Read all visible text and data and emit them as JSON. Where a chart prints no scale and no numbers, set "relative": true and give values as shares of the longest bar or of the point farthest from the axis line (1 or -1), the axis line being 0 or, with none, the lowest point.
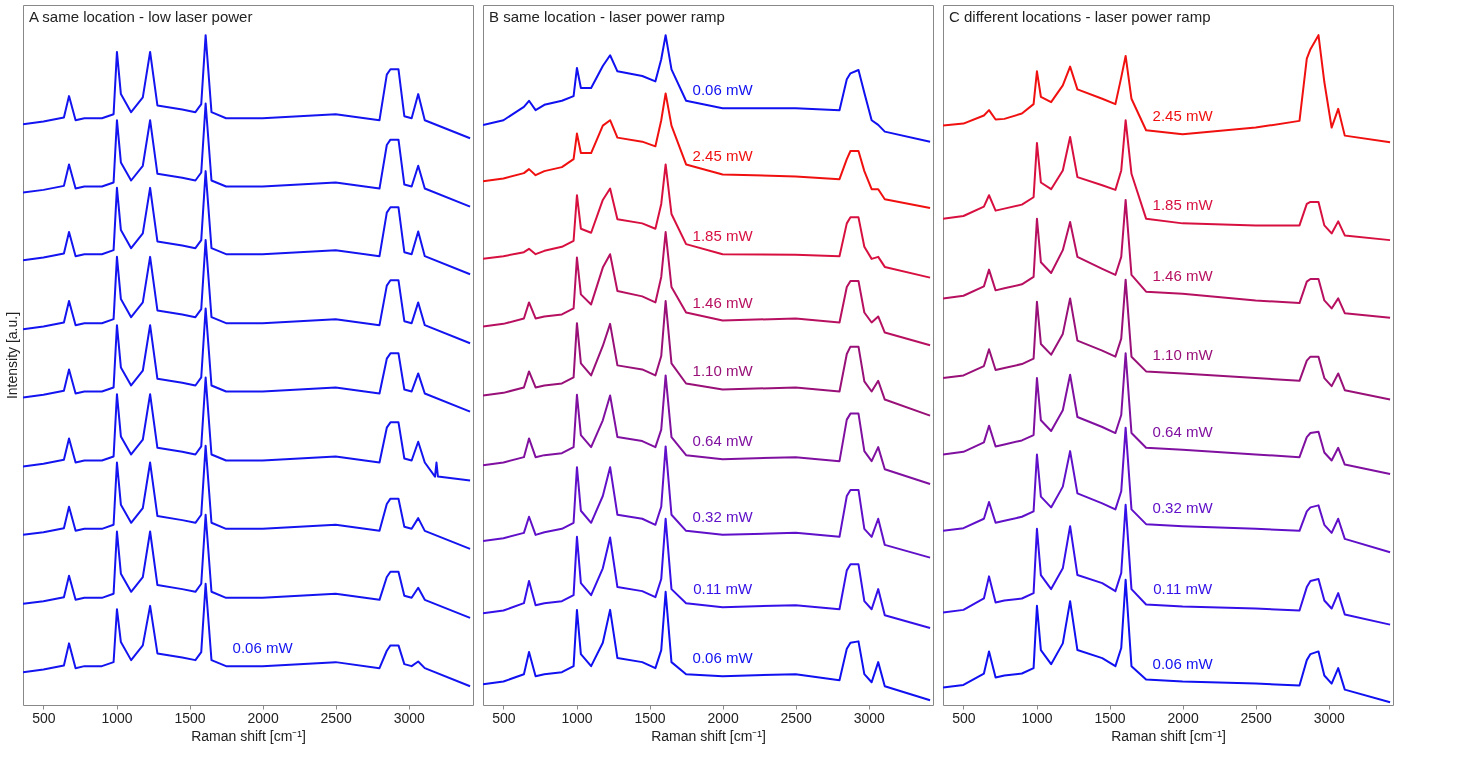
{
  "chart_data": [
    {
      "type": "line",
      "title": "A same location - low laser power",
      "xlabel": "Raman shift [cm⁻¹]",
      "ylabel": "Intensity [a.u.]",
      "relative": true,
      "tick_labels": "x",
      "xlim": [
        360,
        3440
      ],
      "xticks": [
        500,
        1000,
        1500,
        2000,
        2500,
        3000
      ],
      "x": [
        360,
        500,
        640,
        675,
        720,
        780,
        900,
        980,
        1003,
        1030,
        1100,
        1180,
        1230,
        1280,
        1450,
        1540,
        1580,
        1610,
        1650,
        1750,
        2000,
        2500,
        2800,
        2850,
        2875,
        2930,
        2970,
        3020,
        3065,
        3110,
        3420
      ],
      "series": [
        {
          "color": "#1414f0",
          "values": [
            0.867,
            0.871,
            0.877,
            0.909,
            0.873,
            0.876,
            0.876,
            0.882,
            0.975,
            0.912,
            0.885,
            0.907,
            0.975,
            0.895,
            0.889,
            0.885,
            0.897,
            1.0,
            0.885,
            0.876,
            0.876,
            0.882,
            0.873,
            0.941,
            0.949,
            0.949,
            0.879,
            0.876,
            0.912,
            0.873,
            0.846
          ]
        },
        {
          "color": "#1414f0",
          "values": [
            0.765,
            0.769,
            0.775,
            0.807,
            0.771,
            0.774,
            0.774,
            0.78,
            0.873,
            0.81,
            0.783,
            0.805,
            0.873,
            0.793,
            0.787,
            0.783,
            0.795,
            0.898,
            0.783,
            0.774,
            0.774,
            0.78,
            0.771,
            0.836,
            0.844,
            0.844,
            0.777,
            0.774,
            0.805,
            0.771,
            0.744
          ]
        },
        {
          "color": "#1414f0",
          "values": [
            0.664,
            0.668,
            0.674,
            0.706,
            0.67,
            0.673,
            0.673,
            0.679,
            0.772,
            0.709,
            0.682,
            0.704,
            0.772,
            0.692,
            0.686,
            0.682,
            0.694,
            0.797,
            0.682,
            0.673,
            0.673,
            0.679,
            0.67,
            0.735,
            0.743,
            0.743,
            0.676,
            0.673,
            0.707,
            0.67,
            0.643
          ]
        },
        {
          "color": "#1414f0",
          "values": [
            0.561,
            0.565,
            0.571,
            0.603,
            0.567,
            0.57,
            0.57,
            0.576,
            0.669,
            0.606,
            0.579,
            0.601,
            0.669,
            0.589,
            0.583,
            0.579,
            0.591,
            0.694,
            0.579,
            0.57,
            0.57,
            0.576,
            0.567,
            0.626,
            0.634,
            0.634,
            0.573,
            0.57,
            0.601,
            0.567,
            0.54
          ]
        },
        {
          "color": "#1414f0",
          "values": [
            0.459,
            0.463,
            0.469,
            0.501,
            0.465,
            0.468,
            0.468,
            0.474,
            0.567,
            0.504,
            0.477,
            0.499,
            0.567,
            0.487,
            0.481,
            0.477,
            0.489,
            0.592,
            0.477,
            0.468,
            0.468,
            0.474,
            0.465,
            0.517,
            0.525,
            0.525,
            0.471,
            0.468,
            0.495,
            0.465,
            0.438
          ]
        },
        {
          "color": "#1414f0",
          "x": [
            360,
            500,
            640,
            675,
            720,
            780,
            900,
            980,
            1003,
            1030,
            1100,
            1180,
            1230,
            1280,
            1450,
            1540,
            1580,
            1610,
            1650,
            1750,
            2000,
            2500,
            2800,
            2850,
            2875,
            2930,
            2970,
            3020,
            3065,
            3110,
            3180,
            3190,
            3200,
            3420
          ],
          "values": [
            0.356,
            0.36,
            0.366,
            0.398,
            0.362,
            0.365,
            0.365,
            0.371,
            0.464,
            0.401,
            0.374,
            0.396,
            0.464,
            0.384,
            0.378,
            0.374,
            0.386,
            0.489,
            0.374,
            0.365,
            0.365,
            0.371,
            0.362,
            0.414,
            0.422,
            0.422,
            0.368,
            0.365,
            0.393,
            0.362,
            0.341,
            0.362,
            0.341,
            0.335
          ]
        },
        {
          "color": "#1414f0",
          "values": [
            0.254,
            0.258,
            0.264,
            0.296,
            0.26,
            0.263,
            0.263,
            0.269,
            0.362,
            0.299,
            0.272,
            0.294,
            0.362,
            0.282,
            0.276,
            0.272,
            0.284,
            0.387,
            0.272,
            0.263,
            0.263,
            0.269,
            0.26,
            0.3,
            0.308,
            0.308,
            0.266,
            0.263,
            0.279,
            0.26,
            0.233
          ]
        },
        {
          "color": "#1414f0",
          "values": [
            0.151,
            0.155,
            0.161,
            0.193,
            0.157,
            0.16,
            0.16,
            0.166,
            0.259,
            0.196,
            0.169,
            0.191,
            0.259,
            0.179,
            0.173,
            0.169,
            0.181,
            0.284,
            0.169,
            0.16,
            0.16,
            0.166,
            0.157,
            0.191,
            0.199,
            0.199,
            0.163,
            0.16,
            0.175,
            0.157,
            0.13
          ]
        },
        {
          "name": "0.06 mW",
          "color": "#1414f0",
          "values": [
            0.049,
            0.053,
            0.059,
            0.092,
            0.055,
            0.058,
            0.058,
            0.064,
            0.143,
            0.094,
            0.067,
            0.089,
            0.148,
            0.077,
            0.071,
            0.067,
            0.079,
            0.181,
            0.067,
            0.058,
            0.058,
            0.064,
            0.055,
            0.081,
            0.089,
            0.089,
            0.061,
            0.058,
            0.065,
            0.055,
            0.028
          ]
        }
      ]
    },
    {
      "type": "line",
      "title": "B same location - laser power ramp",
      "xlabel": "Raman shift [cm⁻¹]",
      "relative": true,
      "tick_labels": "x",
      "xlim": [
        360,
        3440
      ],
      "xticks": [
        500,
        1000,
        1500,
        2000,
        2500,
        3000
      ],
      "x": [
        360,
        500,
        640,
        675,
        720,
        780,
        900,
        980,
        1003,
        1030,
        1100,
        1180,
        1230,
        1280,
        1450,
        1540,
        1580,
        1610,
        1650,
        1750,
        2000,
        2500,
        2800,
        2850,
        2875,
        2930,
        2970,
        3020,
        3065,
        3110,
        3420
      ],
      "series": [
        {
          "name": "0.06 mW",
          "color": "#1010f0",
          "values": [
            0.866,
            0.873,
            0.893,
            0.902,
            0.888,
            0.896,
            0.902,
            0.909,
            0.951,
            0.921,
            0.921,
            0.954,
            0.97,
            0.946,
            0.939,
            0.931,
            0.964,
            1.0,
            0.949,
            0.902,
            0.891,
            0.891,
            0.888,
            0.934,
            0.943,
            0.948,
            0.914,
            0.873,
            0.866,
            0.856,
            0.841
          ]
        },
        {
          "name": "2.45 mW",
          "color": "#f01010",
          "values": [
            0.782,
            0.786,
            0.794,
            0.8,
            0.791,
            0.797,
            0.803,
            0.815,
            0.853,
            0.824,
            0.824,
            0.865,
            0.873,
            0.847,
            0.841,
            0.834,
            0.873,
            0.913,
            0.865,
            0.807,
            0.792,
            0.789,
            0.785,
            0.815,
            0.827,
            0.827,
            0.797,
            0.77,
            0.77,
            0.755,
            0.742
          ]
        },
        {
          "name": "1.85 mW",
          "color": "#d81040",
          "values": [
            0.666,
            0.67,
            0.676,
            0.681,
            0.673,
            0.678,
            0.684,
            0.693,
            0.761,
            0.711,
            0.705,
            0.754,
            0.771,
            0.725,
            0.719,
            0.711,
            0.748,
            0.807,
            0.733,
            0.688,
            0.673,
            0.672,
            0.67,
            0.719,
            0.728,
            0.728,
            0.684,
            0.666,
            0.669,
            0.654,
            0.638
          ]
        },
        {
          "name": "1.46 mW",
          "color": "#b81060",
          "values": [
            0.565,
            0.569,
            0.577,
            0.601,
            0.577,
            0.58,
            0.583,
            0.592,
            0.668,
            0.613,
            0.598,
            0.653,
            0.673,
            0.618,
            0.61,
            0.601,
            0.639,
            0.706,
            0.624,
            0.586,
            0.574,
            0.577,
            0.571,
            0.624,
            0.633,
            0.633,
            0.586,
            0.571,
            0.58,
            0.556,
            0.537
          ]
        },
        {
          "name": "1.10 mW",
          "color": "#981078",
          "values": [
            0.462,
            0.466,
            0.474,
            0.498,
            0.474,
            0.477,
            0.48,
            0.489,
            0.57,
            0.51,
            0.492,
            0.536,
            0.569,
            0.507,
            0.501,
            0.492,
            0.521,
            0.603,
            0.51,
            0.48,
            0.471,
            0.474,
            0.468,
            0.524,
            0.535,
            0.535,
            0.483,
            0.468,
            0.484,
            0.456,
            0.432
          ]
        },
        {
          "name": "0.64 mW",
          "color": "#8010a0",
          "values": [
            0.358,
            0.362,
            0.37,
            0.398,
            0.37,
            0.373,
            0.376,
            0.385,
            0.463,
            0.403,
            0.385,
            0.425,
            0.462,
            0.4,
            0.394,
            0.385,
            0.411,
            0.492,
            0.4,
            0.373,
            0.367,
            0.37,
            0.364,
            0.426,
            0.435,
            0.435,
            0.379,
            0.364,
            0.385,
            0.352,
            0.33
          ]
        },
        {
          "name": "0.32 mW",
          "color": "#6010c8",
          "values": [
            0.245,
            0.249,
            0.257,
            0.281,
            0.254,
            0.258,
            0.263,
            0.272,
            0.355,
            0.29,
            0.272,
            0.312,
            0.355,
            0.284,
            0.278,
            0.269,
            0.296,
            0.386,
            0.284,
            0.26,
            0.254,
            0.257,
            0.251,
            0.312,
            0.321,
            0.321,
            0.263,
            0.251,
            0.278,
            0.239,
            0.22
          ]
        },
        {
          "name": "0.11 mW",
          "color": "#3510e8",
          "values": [
            0.137,
            0.141,
            0.152,
            0.185,
            0.149,
            0.152,
            0.155,
            0.164,
            0.251,
            0.182,
            0.164,
            0.204,
            0.25,
            0.176,
            0.17,
            0.161,
            0.188,
            0.278,
            0.173,
            0.152,
            0.146,
            0.149,
            0.143,
            0.201,
            0.21,
            0.21,
            0.155,
            0.143,
            0.173,
            0.134,
            0.115
          ]
        },
        {
          "name": "0.06 mW",
          "color": "#1010f0",
          "values": [
            0.031,
            0.035,
            0.046,
            0.079,
            0.043,
            0.046,
            0.049,
            0.058,
            0.142,
            0.076,
            0.058,
            0.093,
            0.142,
            0.07,
            0.064,
            0.055,
            0.082,
            0.169,
            0.064,
            0.046,
            0.043,
            0.046,
            0.037,
            0.084,
            0.093,
            0.095,
            0.046,
            0.034,
            0.064,
            0.028,
            0.007
          ]
        }
      ]
    },
    {
      "type": "line",
      "title": "C different locations - laser power ramp",
      "xlabel": "Raman shift [cm⁻¹]",
      "relative": true,
      "tick_labels": "x",
      "xlim": [
        360,
        3440
      ],
      "xticks": [
        500,
        1000,
        1500,
        2000,
        2500,
        3000
      ],
      "x": [
        360,
        500,
        640,
        675,
        720,
        780,
        900,
        980,
        1003,
        1030,
        1100,
        1180,
        1230,
        1280,
        1450,
        1540,
        1580,
        1610,
        1650,
        1750,
        2000,
        2500,
        2800,
        2850,
        2875,
        2930,
        2970,
        3020,
        3065,
        3110,
        3420
      ],
      "series": [
        {
          "name": "2.45 mW",
          "color": "#f01010",
          "values": [
            0.865,
            0.868,
            0.88,
            0.888,
            0.874,
            0.875,
            0.883,
            0.897,
            0.946,
            0.908,
            0.9,
            0.925,
            0.953,
            0.919,
            0.905,
            0.897,
            0.937,
            0.969,
            0.905,
            0.858,
            0.852,
            0.862,
            0.872,
            0.965,
            0.979,
            1.0,
            0.93,
            0.862,
            0.89,
            0.85,
            0.84
          ]
        },
        {
          "name": "1.85 mW",
          "color": "#d81040",
          "values": [
            0.726,
            0.73,
            0.744,
            0.761,
            0.738,
            0.741,
            0.747,
            0.758,
            0.839,
            0.78,
            0.77,
            0.798,
            0.848,
            0.788,
            0.776,
            0.769,
            0.798,
            0.873,
            0.793,
            0.726,
            0.719,
            0.716,
            0.716,
            0.748,
            0.751,
            0.751,
            0.716,
            0.704,
            0.722,
            0.701,
            0.694
          ]
        },
        {
          "name": "1.46 mW",
          "color": "#b81060",
          "values": [
            0.607,
            0.611,
            0.625,
            0.65,
            0.619,
            0.622,
            0.628,
            0.639,
            0.726,
            0.661,
            0.645,
            0.679,
            0.721,
            0.669,
            0.651,
            0.642,
            0.669,
            0.754,
            0.642,
            0.617,
            0.614,
            0.604,
            0.6,
            0.632,
            0.636,
            0.636,
            0.604,
            0.592,
            0.607,
            0.585,
            0.578
          ]
        },
        {
          "name": "1.10 mW",
          "color": "#981078",
          "values": [
            0.488,
            0.492,
            0.506,
            0.531,
            0.5,
            0.503,
            0.509,
            0.517,
            0.602,
            0.539,
            0.523,
            0.554,
            0.607,
            0.544,
            0.529,
            0.52,
            0.547,
            0.635,
            0.52,
            0.498,
            0.495,
            0.488,
            0.484,
            0.514,
            0.52,
            0.52,
            0.488,
            0.476,
            0.495,
            0.47,
            0.456
          ]
        },
        {
          "name": "0.64 mW",
          "color": "#8010a0",
          "values": [
            0.374,
            0.378,
            0.392,
            0.417,
            0.386,
            0.389,
            0.395,
            0.403,
            0.488,
            0.425,
            0.409,
            0.44,
            0.493,
            0.43,
            0.415,
            0.406,
            0.433,
            0.525,
            0.406,
            0.384,
            0.381,
            0.374,
            0.37,
            0.4,
            0.406,
            0.408,
            0.377,
            0.365,
            0.384,
            0.359,
            0.345
          ]
        },
        {
          "name": "0.32 mW",
          "color": "#6010c8",
          "values": [
            0.26,
            0.264,
            0.278,
            0.303,
            0.272,
            0.275,
            0.281,
            0.289,
            0.374,
            0.311,
            0.295,
            0.326,
            0.379,
            0.316,
            0.301,
            0.292,
            0.319,
            0.414,
            0.292,
            0.27,
            0.267,
            0.263,
            0.26,
            0.289,
            0.295,
            0.298,
            0.269,
            0.257,
            0.278,
            0.248,
            0.228
          ]
        },
        {
          "name": "0.11 mW",
          "color": "#3510e8",
          "values": [
            0.138,
            0.142,
            0.159,
            0.192,
            0.153,
            0.156,
            0.159,
            0.167,
            0.263,
            0.194,
            0.173,
            0.204,
            0.267,
            0.194,
            0.182,
            0.17,
            0.197,
            0.299,
            0.173,
            0.15,
            0.147,
            0.144,
            0.141,
            0.176,
            0.185,
            0.188,
            0.156,
            0.144,
            0.167,
            0.135,
            0.12
          ]
        },
        {
          "name": "0.06 mW",
          "color": "#1010f0",
          "values": [
            0.026,
            0.03,
            0.047,
            0.08,
            0.041,
            0.044,
            0.047,
            0.055,
            0.148,
            0.082,
            0.061,
            0.092,
            0.155,
            0.082,
            0.07,
            0.058,
            0.085,
            0.187,
            0.058,
            0.038,
            0.035,
            0.032,
            0.029,
            0.067,
            0.076,
            0.08,
            0.044,
            0.032,
            0.055,
            0.023,
            0.004
          ]
        }
      ]
    }
  ]
}
